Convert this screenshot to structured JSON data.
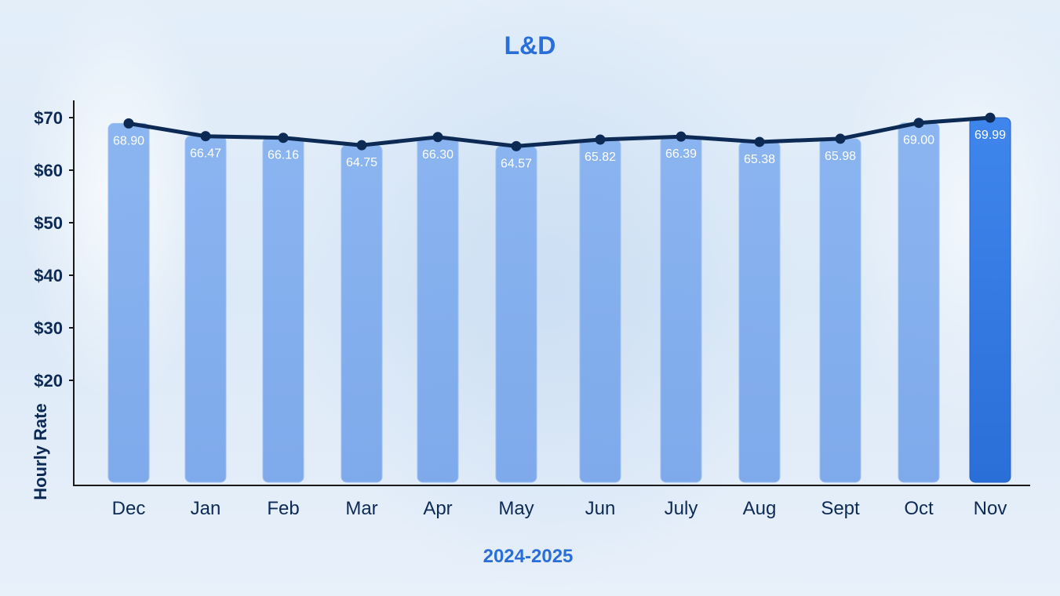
{
  "chart_data": {
    "type": "bar",
    "title": "L&D",
    "xlabel": "2024-2025",
    "ylabel": "Hourly Rate",
    "categories": [
      "Dec",
      "Jan",
      "Feb",
      "Mar",
      "Apr",
      "May",
      "Jun",
      "July",
      "Aug",
      "Sept",
      "Oct",
      "Nov"
    ],
    "values": [
      68.9,
      66.47,
      66.16,
      64.75,
      66.3,
      64.57,
      65.82,
      66.39,
      65.38,
      65.98,
      69.0,
      69.99
    ],
    "value_labels": [
      "68.90",
      "66.47",
      "66.16",
      "64.75",
      "66.30",
      "64.57",
      "65.82",
      "66.39",
      "65.38",
      "65.98",
      "69.00",
      "69.99"
    ],
    "yticks": [
      20,
      30,
      40,
      50,
      60,
      70
    ],
    "ytick_labels": [
      "$20",
      "$30",
      "$40",
      "$50",
      "$60",
      "$70"
    ],
    "ylim": [
      0,
      70
    ],
    "overlay": "line",
    "highlight_category": "Nov",
    "grid": false,
    "colors": {
      "bar": "#86b2f0",
      "bar_highlight": "#2a6ed8",
      "line": "#0d2a55",
      "title": "#2a6ed8",
      "axis_text": "#0d2a55"
    }
  }
}
